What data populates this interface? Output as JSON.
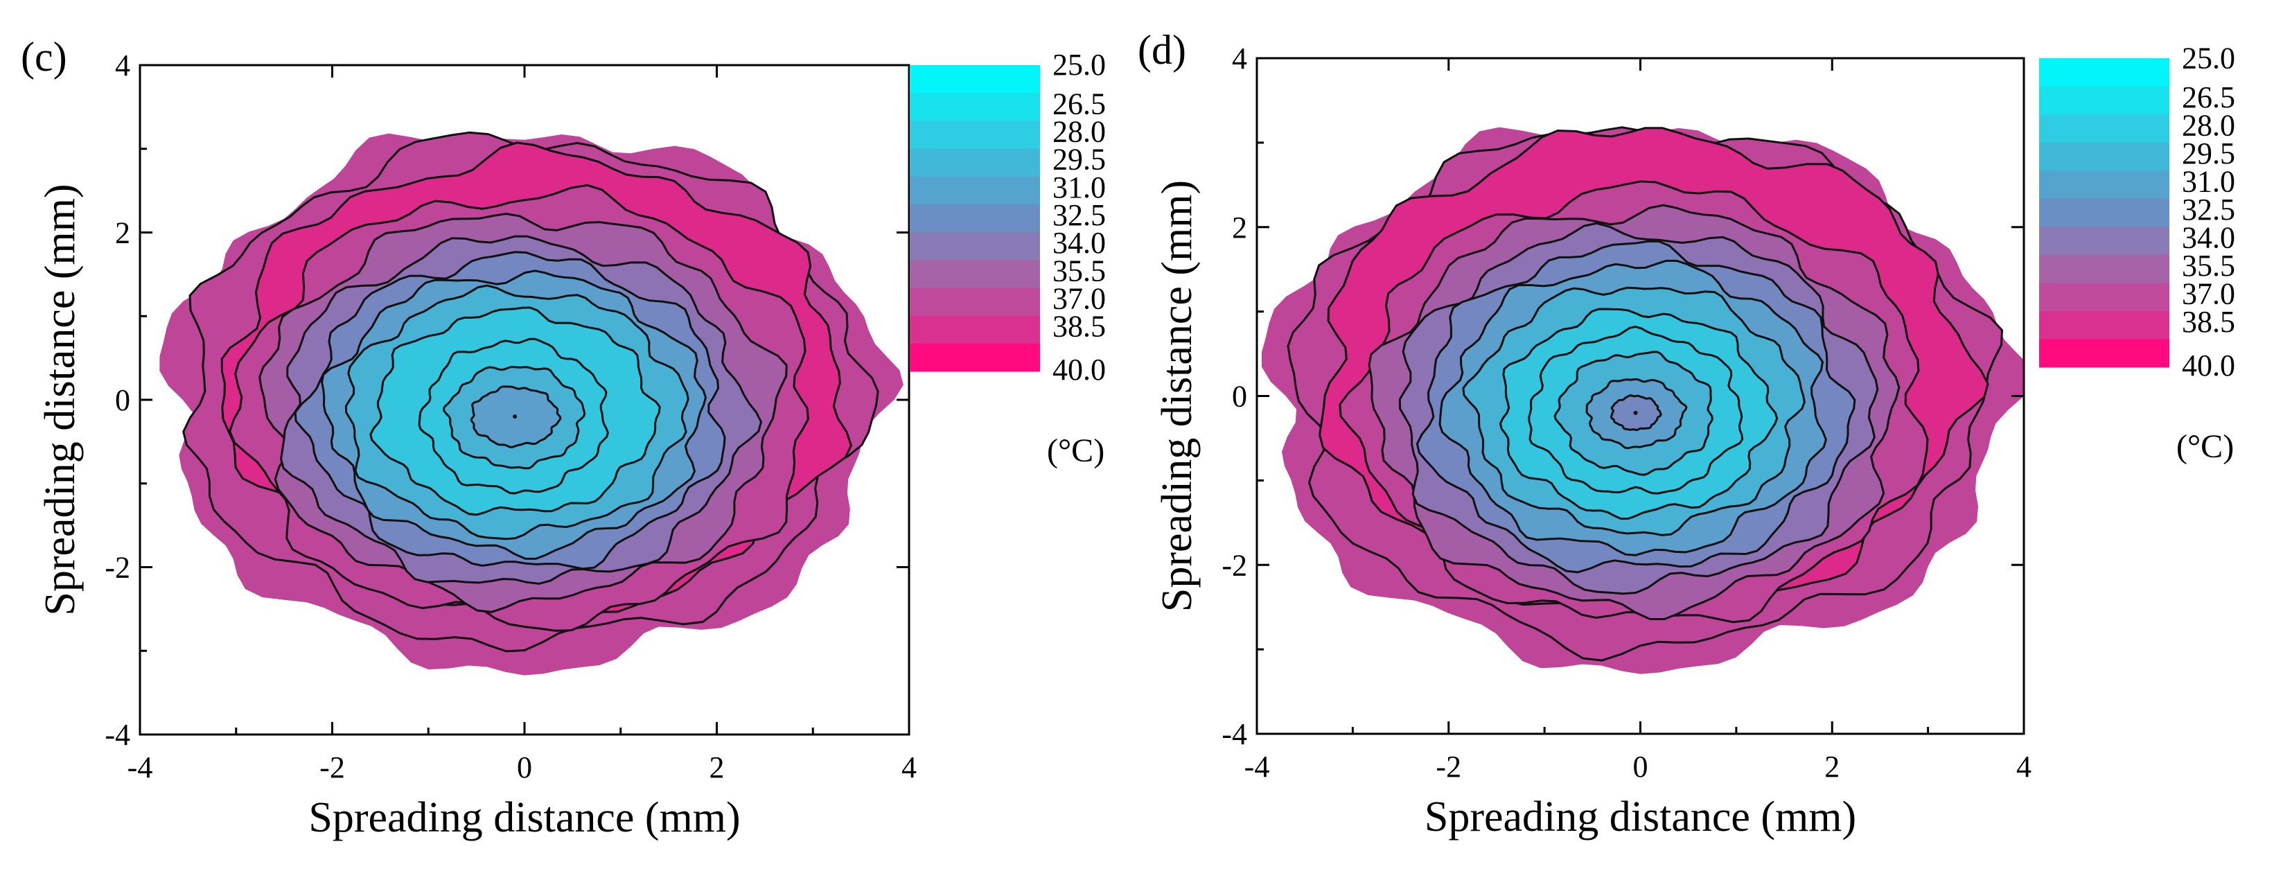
{
  "chart_data": [
    {
      "type": "contour",
      "panel_label": "(c)",
      "title": "",
      "xlabel": "Spreading distance (mm)",
      "ylabel": "Spreading distance (mm)",
      "xlim": [
        -4,
        4
      ],
      "ylim": [
        -4,
        4
      ],
      "xticks": [
        -4,
        -2,
        0,
        2,
        4
      ],
      "yticks": [
        -4,
        -2,
        0,
        2,
        4
      ],
      "grid": false,
      "outer_boundary_radius": [
        3.7,
        3.2
      ],
      "peak_center": [
        -0.1,
        -0.2
      ],
      "levels": [
        25.0,
        26.5,
        28.0,
        29.5,
        31.0,
        32.5,
        34.0,
        35.5,
        37.0,
        38.5,
        40.0
      ],
      "contours": [
        {
          "level": 37.0,
          "center": [
            0.0,
            0.1
          ],
          "radius": [
            3.5,
            3.0
          ]
        },
        {
          "level": 38.5,
          "center": [
            0.1,
            0.2
          ],
          "radius": [
            3.2,
            2.7
          ]
        },
        {
          "level": 37.0,
          "center": [
            0.0,
            -0.1
          ],
          "radius": [
            2.95,
            2.55
          ]
        },
        {
          "level": 35.5,
          "center": [
            -0.05,
            -0.1
          ],
          "radius": [
            2.65,
            2.3
          ]
        },
        {
          "level": 34.0,
          "center": [
            -0.1,
            -0.15
          ],
          "radius": [
            2.4,
            2.05
          ]
        },
        {
          "level": 32.5,
          "center": [
            -0.1,
            -0.15
          ],
          "radius": [
            2.15,
            1.85
          ]
        },
        {
          "level": 31.0,
          "center": [
            -0.1,
            -0.15
          ],
          "radius": [
            1.95,
            1.65
          ]
        },
        {
          "level": 29.5,
          "center": [
            -0.1,
            -0.15
          ],
          "radius": [
            1.75,
            1.45
          ]
        },
        {
          "level": 28.0,
          "center": [
            -0.1,
            -0.15
          ],
          "radius": [
            1.45,
            1.2
          ]
        },
        {
          "level": 28.0,
          "center": [
            -0.1,
            -0.2
          ],
          "radius": [
            0.95,
            0.9
          ]
        },
        {
          "level": 29.5,
          "center": [
            -0.1,
            -0.2
          ],
          "radius": [
            0.7,
            0.6
          ]
        },
        {
          "level": 31.0,
          "center": [
            -0.1,
            -0.2
          ],
          "radius": [
            0.45,
            0.35
          ]
        }
      ]
    },
    {
      "type": "contour",
      "panel_label": "(d)",
      "title": "",
      "xlabel": "Spreading distance (mm)",
      "ylabel": "Spreading distance (mm)",
      "xlim": [
        -4,
        4
      ],
      "ylim": [
        -4,
        4
      ],
      "xticks": [
        -4,
        -2,
        0,
        2,
        4
      ],
      "yticks": [
        -4,
        -2,
        0,
        2,
        4
      ],
      "grid": false,
      "outer_boundary_radius": [
        3.85,
        3.2
      ],
      "peak_center": [
        -0.05,
        -0.2
      ],
      "levels": [
        25.0,
        26.5,
        28.0,
        29.5,
        31.0,
        32.5,
        34.0,
        35.5,
        37.0,
        38.5,
        40.0
      ],
      "contours": [
        {
          "level": 37.0,
          "center": [
            0.0,
            0.1
          ],
          "radius": [
            3.6,
            3.05
          ]
        },
        {
          "level": 38.5,
          "center": [
            0.05,
            0.3
          ],
          "radius": [
            3.35,
            2.8
          ]
        },
        {
          "level": 37.0,
          "center": [
            0.0,
            -0.1
          ],
          "radius": [
            2.95,
            2.55
          ]
        },
        {
          "level": 35.5,
          "center": [
            -0.05,
            -0.15
          ],
          "radius": [
            2.7,
            2.35
          ]
        },
        {
          "level": 34.0,
          "center": [
            -0.05,
            -0.15
          ],
          "radius": [
            2.45,
            2.1
          ]
        },
        {
          "level": 32.5,
          "center": [
            -0.05,
            -0.15
          ],
          "radius": [
            2.2,
            1.9
          ]
        },
        {
          "level": 31.0,
          "center": [
            -0.05,
            -0.15
          ],
          "radius": [
            1.95,
            1.7
          ]
        },
        {
          "level": 29.5,
          "center": [
            -0.05,
            -0.15
          ],
          "radius": [
            1.7,
            1.45
          ]
        },
        {
          "level": 28.0,
          "center": [
            -0.05,
            -0.2
          ],
          "radius": [
            1.4,
            1.2
          ]
        },
        {
          "level": 28.0,
          "center": [
            -0.05,
            -0.2
          ],
          "radius": [
            1.1,
            0.95
          ]
        },
        {
          "level": 29.5,
          "center": [
            -0.05,
            -0.2
          ],
          "radius": [
            0.8,
            0.7
          ]
        },
        {
          "level": 31.0,
          "center": [
            -0.05,
            -0.2
          ],
          "radius": [
            0.5,
            0.4
          ]
        },
        {
          "level": 32.5,
          "center": [
            -0.05,
            -0.2
          ],
          "radius": [
            0.25,
            0.2
          ]
        }
      ]
    }
  ],
  "colorbar": {
    "labels": [
      "25.0",
      "26.5",
      "28.0",
      "29.5",
      "31.0",
      "32.5",
      "34.0",
      "35.5",
      "37.0",
      "38.5",
      "40.0"
    ],
    "unit_label": "(°C)",
    "colors": [
      "#00f6f8",
      "#18e2ee",
      "#2ecde3",
      "#42b8d8",
      "#55a3cf",
      "#6a8fc4",
      "#8a7ab5",
      "#a763a7",
      "#c04a9c",
      "#d8318f",
      "#ff0b7f"
    ],
    "fill_colors": {
      "25.0": "#0ff4f7",
      "26.5": "#23d9e8",
      "28.0": "#34c6df",
      "29.5": "#48b2d5",
      "31.0": "#5c9fcc",
      "32.5": "#7587c0",
      "34.0": "#8e73b4",
      "35.5": "#a55da6",
      "37.0": "#be4598",
      "38.5": "#dd2a8a",
      "40.0": "#ff0b7f"
    }
  }
}
